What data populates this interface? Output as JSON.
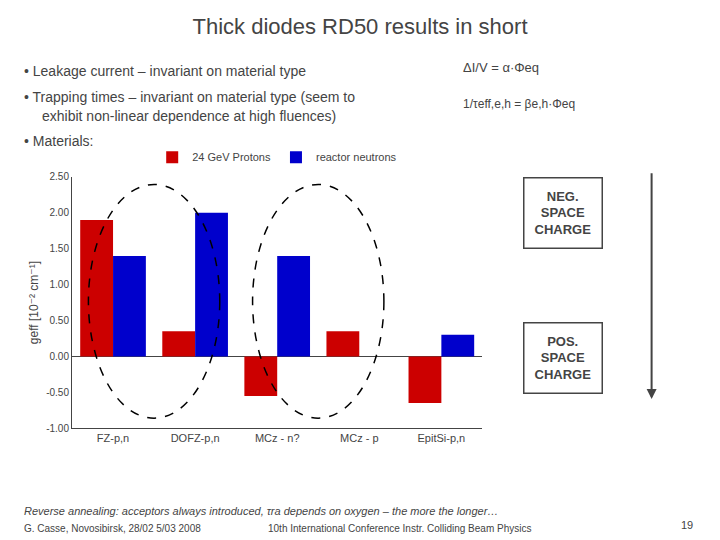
{
  "chart_data": {
    "type": "bar",
    "title": "Thick diodes RD50 results in short",
    "categories": [
      "FZ-p,n",
      "DOFZ-p,n",
      "MCz - n?",
      "MCz - p",
      "EpitSi-p,n"
    ],
    "series": [
      {
        "name": "24 GeV Protons",
        "color": "#cc0000",
        "values": [
          1.9,
          0.35,
          -0.55,
          0.35,
          -0.65
        ]
      },
      {
        "name": "reactor neutrons",
        "color": "#0000cc",
        "values": [
          1.4,
          2.0,
          1.4,
          0.0,
          0.3
        ]
      }
    ],
    "ylabel": "geff [10⁻² cm⁻¹]",
    "ylim": [
      -1.0,
      2.5
    ],
    "yticks": [
      {
        "value": -1.0,
        "label": "-1.00"
      },
      {
        "value": -0.5,
        "label": "-0.50"
      },
      {
        "value": 0.0,
        "label": "0.00"
      },
      {
        "value": 0.5,
        "label": "0.50"
      },
      {
        "value": 1.0,
        "label": "1.00"
      },
      {
        "value": 1.5,
        "label": "1.50"
      },
      {
        "value": 2.0,
        "label": "2.00"
      },
      {
        "value": 2.5,
        "label": "2.50"
      }
    ],
    "grid": false,
    "legend": "top",
    "annotations": [
      "• Leakage current – invariant on material type",
      "• Trapping times – invariant on material type (seem to",
      "exhibit non-linear dependence at high fluences)",
      "• Materials:",
      "ΔI/V = α·Φeq",
      "1/τeff,e,h = βe,h·Φeq",
      "NEG.\nSPACE\nCHARGE",
      "POS.\nSPACE\nCHARGE",
      "Reverse annealing: acceptors always introduced, τra depends on oxygen – the more the longer…",
      "G. Casse, Novosibirsk, 28/02 5/03 2008",
      "10th International Conference Instr. Colliding Beam Physics",
      "19"
    ]
  }
}
